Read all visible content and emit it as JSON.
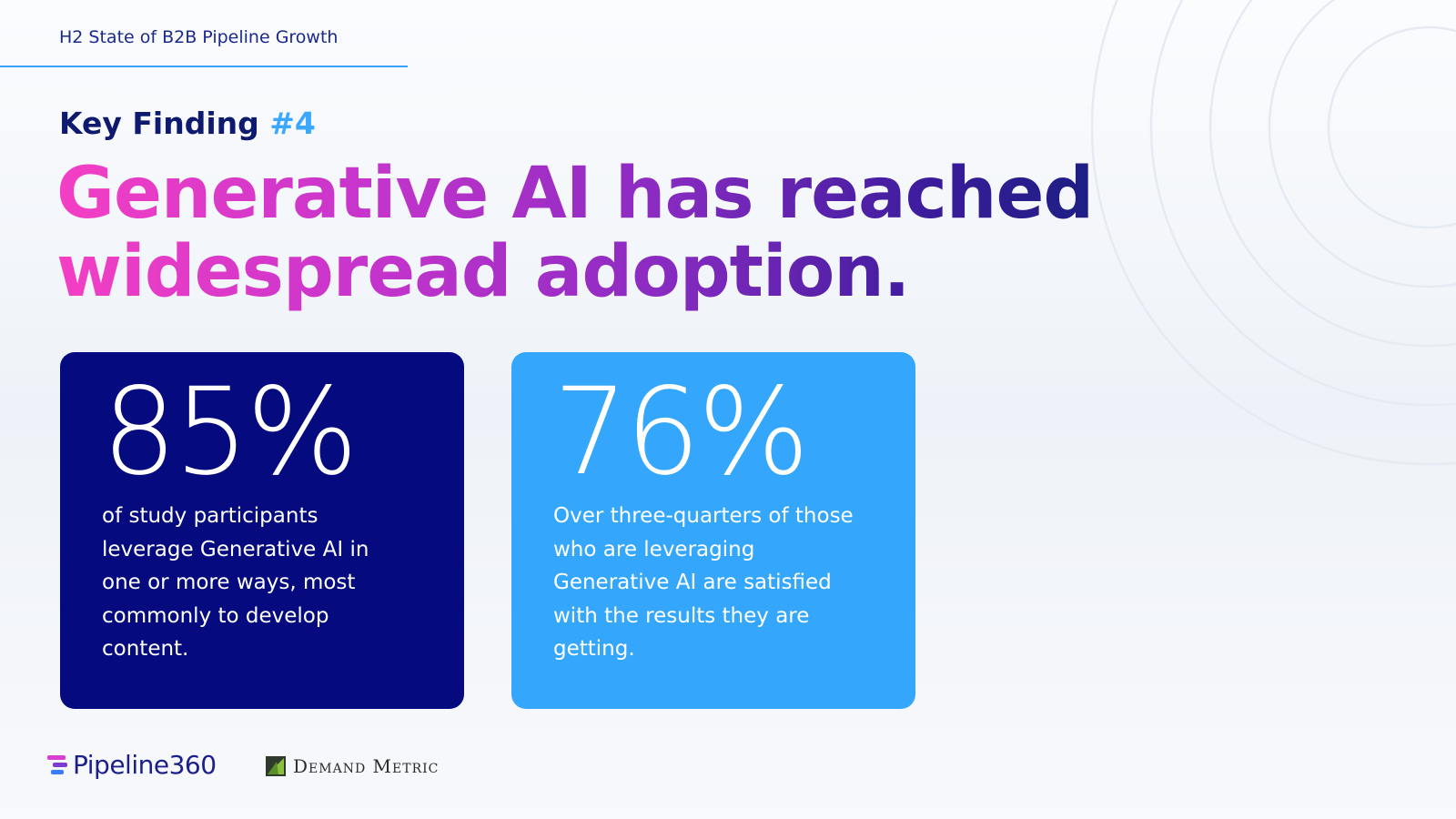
{
  "header": {
    "label": "H2 State of B2B Pipeline Growth"
  },
  "finding": {
    "label": "Key Finding",
    "number": "#4"
  },
  "headline": {
    "line1": "Generative AI has reached",
    "line2": "widespread adoption."
  },
  "cards": [
    {
      "stat": "85%",
      "description": "of study participants leverage Generative AI in one or more ways, most commonly to develop content.",
      "color": "#050a7e"
    },
    {
      "stat": "76%",
      "description": "Over three-quarters of those who are leveraging Generative AI are satisfied with the results they are getting.",
      "color": "#34a7fc"
    }
  ],
  "logos": {
    "pipeline360": "Pipeline360",
    "demand_metric": "Demand Metric"
  },
  "colors": {
    "navy": "#0d1a6e",
    "accent_blue": "#3aa8ff",
    "gradient_start": "#f43fc4",
    "gradient_end": "#121f7a"
  }
}
